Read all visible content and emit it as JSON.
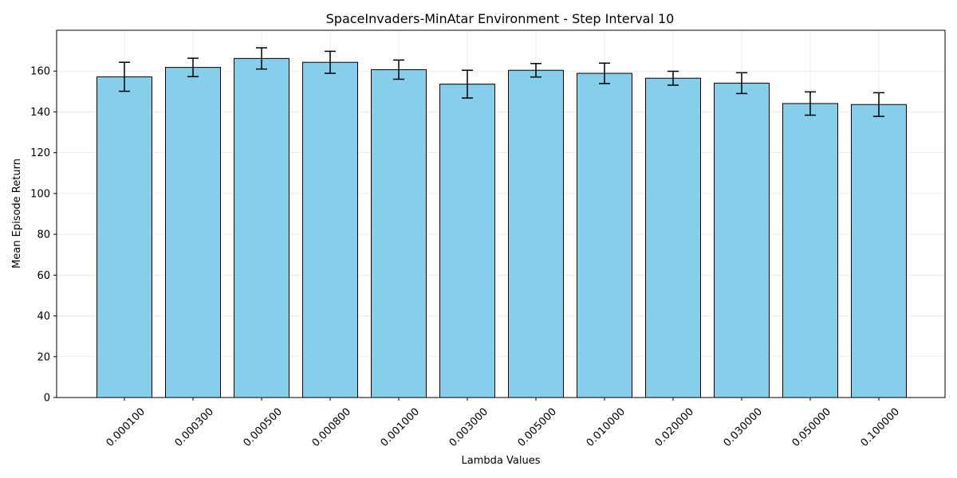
{
  "chart_data": {
    "type": "bar",
    "title": "SpaceInvaders-MinAtar Environment - Step Interval 10",
    "xlabel": "Lambda Values",
    "ylabel": "Mean Episode Return",
    "categories": [
      "0.000100",
      "0.000300",
      "0.000500",
      "0.000800",
      "0.001000",
      "0.003000",
      "0.005000",
      "0.010000",
      "0.020000",
      "0.030000",
      "0.050000",
      "0.100000"
    ],
    "values": [
      157.2,
      161.8,
      166.2,
      164.3,
      160.7,
      153.6,
      160.4,
      158.9,
      156.5,
      154.1,
      144.1,
      143.6
    ],
    "errors": [
      7.1,
      4.5,
      5.2,
      5.4,
      4.7,
      6.8,
      3.3,
      5.0,
      3.4,
      5.1,
      5.7,
      5.8
    ],
    "ylim": [
      0,
      180
    ],
    "yticks": [
      0,
      20,
      40,
      60,
      80,
      100,
      120,
      140,
      160
    ],
    "grid": true,
    "bar_color": "#87ceeb",
    "edge_color": "#000000"
  }
}
